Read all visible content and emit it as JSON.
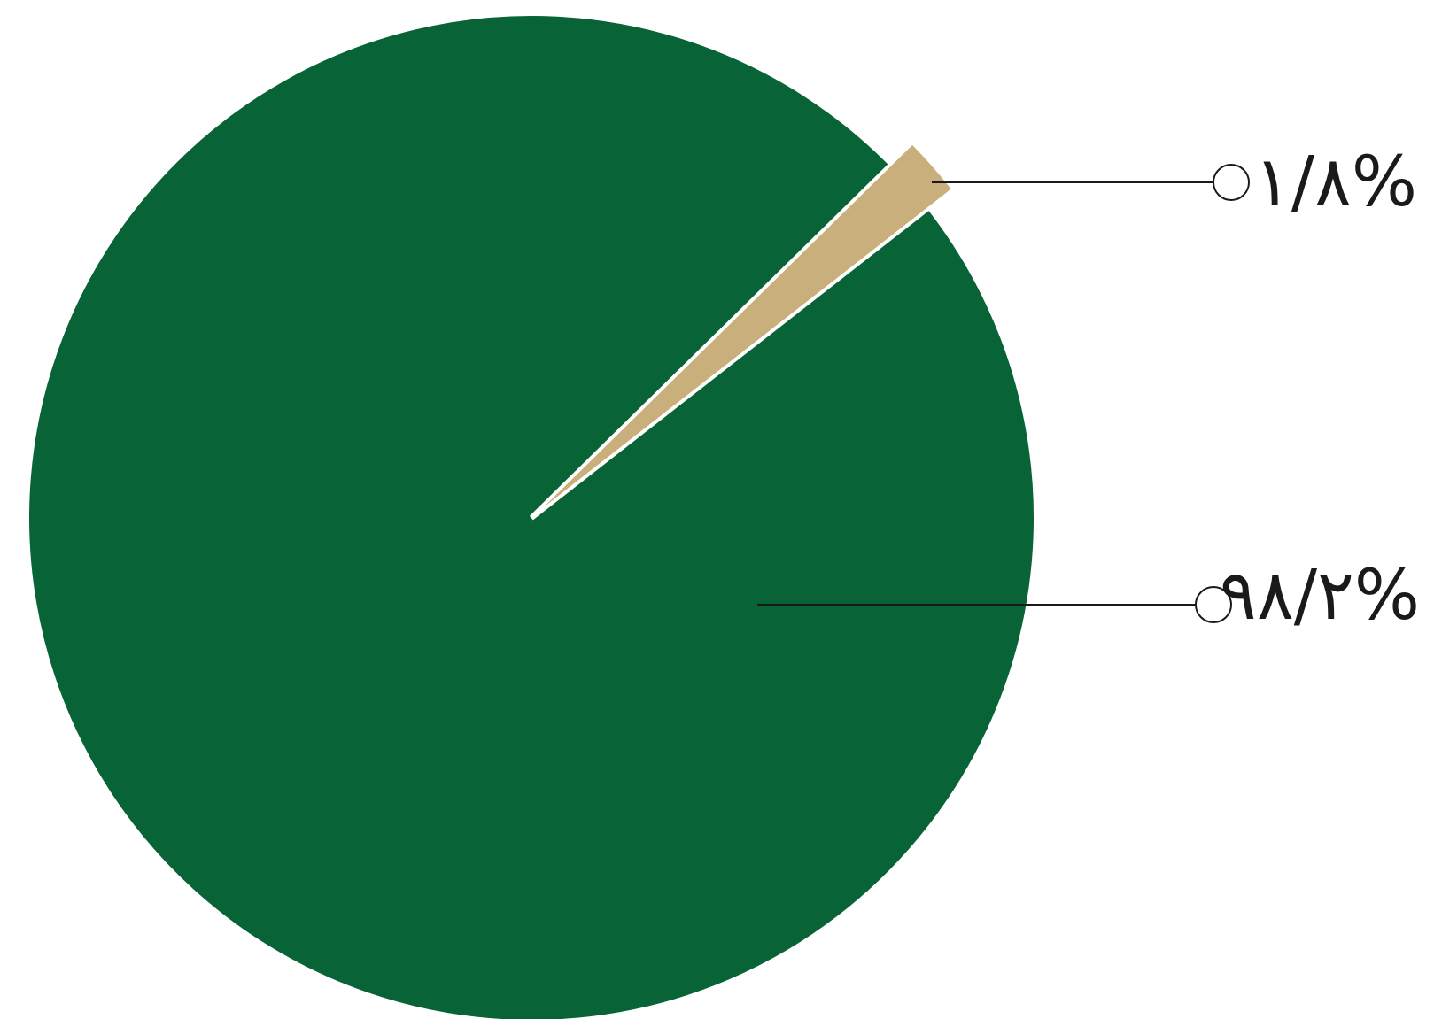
{
  "chart_data": {
    "type": "pie",
    "title": "",
    "slices": [
      {
        "label": "۹۸/۲%",
        "value": 98.2,
        "color": "#086337"
      },
      {
        "label": "۱/۸%",
        "value": 1.8,
        "color": "#c9af7b"
      }
    ],
    "colors": {
      "separator": "#ffffff",
      "leader_line": "#1a1a1a"
    },
    "legend": "none"
  }
}
